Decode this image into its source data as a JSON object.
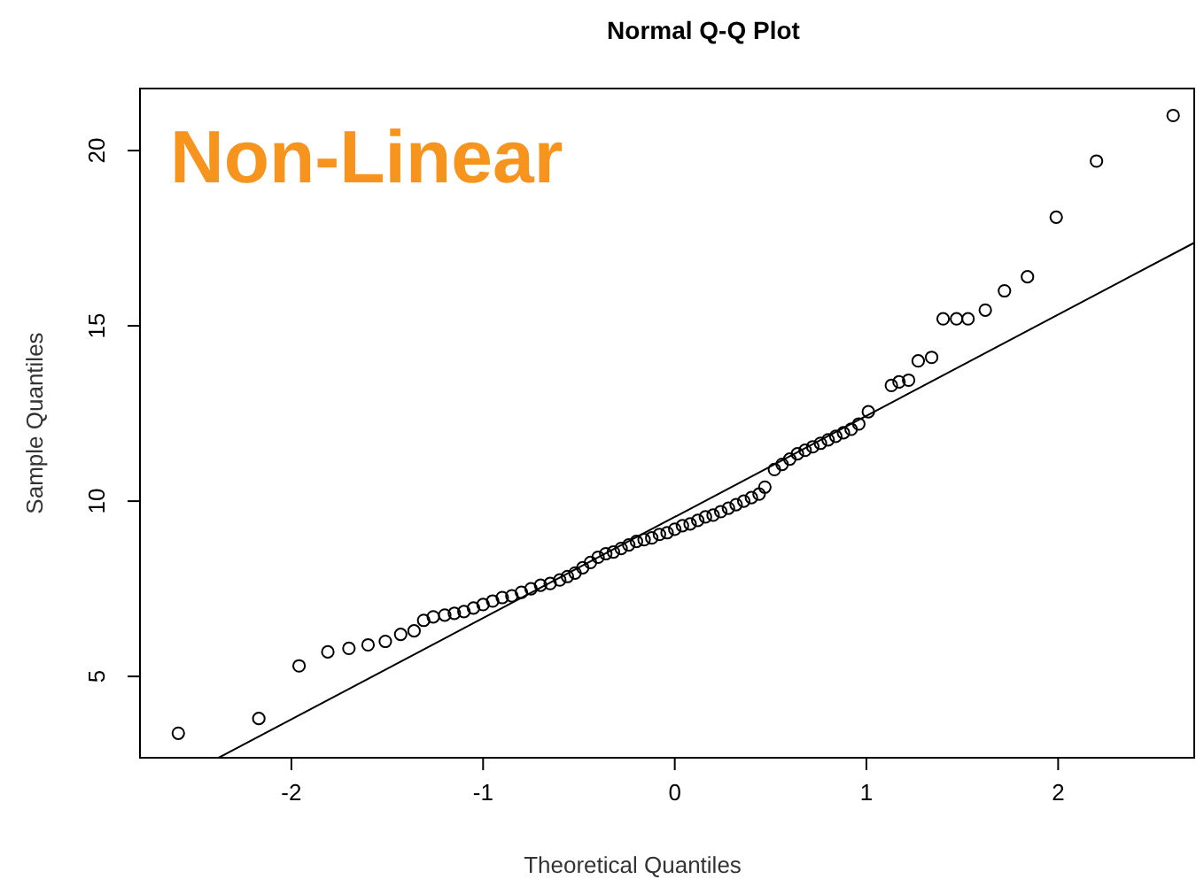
{
  "chart_data": {
    "type": "scatter",
    "title": "Normal Q-Q Plot",
    "xlabel": "Theoretical Quantiles",
    "ylabel": "Sample Quantiles",
    "annotations": [
      "Non-Linear"
    ],
    "xlim": [
      -2.79,
      2.71
    ],
    "ylim": [
      2.68,
      21.77
    ],
    "xticks": [
      -2,
      -1,
      0,
      1,
      2
    ],
    "yticks": [
      5,
      10,
      15,
      20
    ],
    "grid": false,
    "marker": "circle",
    "series": [
      {
        "color": "#000000",
        "x": [
          -2.59,
          -2.17,
          -1.96,
          -1.81,
          -1.7,
          -1.6,
          -1.51,
          -1.43,
          -1.36,
          -1.31,
          -1.26,
          -1.2,
          -1.15,
          -1.1,
          -1.05,
          -1.0,
          -0.95,
          -0.9,
          -0.85,
          -0.8,
          -0.75,
          -0.7,
          -0.65,
          -0.6,
          -0.56,
          -0.52,
          -0.48,
          -0.44,
          -0.4,
          -0.36,
          -0.32,
          -0.28,
          -0.24,
          -0.2,
          -0.16,
          -0.12,
          -0.08,
          -0.04,
          0.0,
          0.04,
          0.08,
          0.12,
          0.16,
          0.2,
          0.24,
          0.28,
          0.32,
          0.36,
          0.4,
          0.44,
          0.47,
          0.52,
          0.56,
          0.6,
          0.64,
          0.68,
          0.72,
          0.76,
          0.8,
          0.84,
          0.88,
          0.92,
          0.96,
          1.01,
          1.13,
          1.17,
          1.22,
          1.27,
          1.34,
          1.4,
          1.47,
          1.53,
          1.62,
          1.72,
          1.84,
          1.99,
          2.2,
          2.6
        ],
        "values": [
          3.38,
          3.8,
          5.3,
          5.7,
          5.8,
          5.9,
          6.0,
          6.2,
          6.3,
          6.6,
          6.7,
          6.75,
          6.8,
          6.85,
          6.95,
          7.05,
          7.15,
          7.25,
          7.3,
          7.4,
          7.5,
          7.6,
          7.65,
          7.75,
          7.85,
          7.95,
          8.1,
          8.25,
          8.4,
          8.5,
          8.55,
          8.65,
          8.75,
          8.85,
          8.9,
          8.95,
          9.05,
          9.1,
          9.2,
          9.3,
          9.35,
          9.45,
          9.55,
          9.6,
          9.7,
          9.8,
          9.9,
          10.0,
          10.1,
          10.2,
          10.4,
          10.9,
          11.05,
          11.2,
          11.35,
          11.45,
          11.55,
          11.65,
          11.75,
          11.85,
          11.95,
          12.05,
          12.2,
          12.55,
          13.3,
          13.4,
          13.45,
          14.0,
          14.1,
          15.2,
          15.2,
          15.2,
          15.45,
          16.0,
          16.4,
          18.1,
          19.7,
          21.0
        ]
      },
      {
        "type": "line",
        "color": "#000000",
        "marker": "none",
        "line_style": "solid",
        "x": [
          -2.38,
          2.71
        ],
        "values": [
          2.68,
          17.37
        ]
      }
    ]
  }
}
